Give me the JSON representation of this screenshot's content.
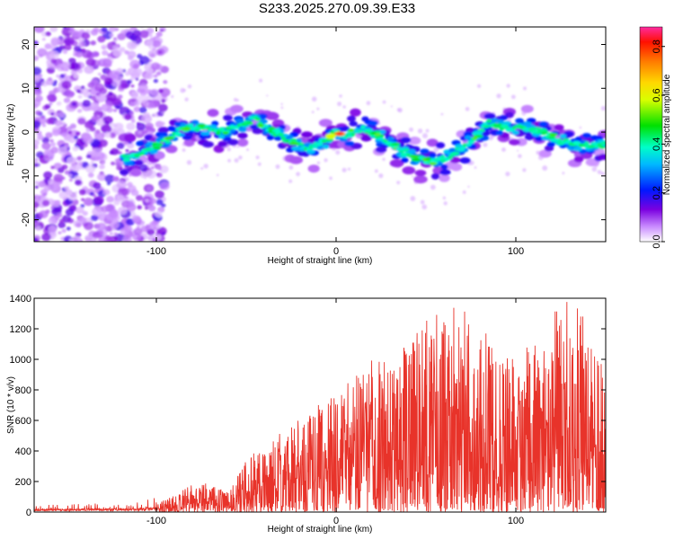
{
  "title": "S233.2025.270.09.39.E33",
  "chart_data": [
    {
      "type": "heatmap",
      "title": "S233.2025.270.09.39.E33",
      "xlabel": "Height of straight line (km)",
      "ylabel": "Frequency (Hz)",
      "xlim": [
        -168,
        150
      ],
      "ylim": [
        -25,
        24
      ],
      "x_ticks": [
        -100,
        0,
        100
      ],
      "y_ticks": [
        -20,
        -10,
        0,
        10,
        20
      ],
      "colorbar": {
        "label": "Normalized spectral amplitude",
        "range": [
          0.0,
          0.88
        ],
        "ticks": [
          "0.0",
          "0.2",
          "0.4",
          "0.6",
          "0.8"
        ]
      },
      "ridge": {
        "x": [
          -115,
          -105,
          -95,
          -85,
          -75,
          -65,
          -55,
          -45,
          -35,
          -25,
          -15,
          -5,
          0,
          5,
          15,
          25,
          35,
          45,
          55,
          65,
          75,
          85,
          95,
          105,
          115,
          125,
          135,
          145
        ],
        "y": [
          -6,
          -4,
          -2,
          1,
          1,
          0,
          1,
          3,
          0,
          -2,
          -4,
          -2,
          0,
          -1,
          1,
          -1,
          -4,
          -6,
          -7,
          -5,
          -2,
          2,
          1,
          1,
          0,
          -2,
          -3,
          -3
        ],
        "peak_amplitude": 0.88,
        "peak_x": 2
      }
    },
    {
      "type": "line",
      "xlabel": "Height of straight line (km)",
      "ylabel": "SNR (10 * v/v)",
      "xlim": [
        -168,
        150
      ],
      "ylim": [
        0,
        1400
      ],
      "x_ticks": [
        -100,
        0,
        100
      ],
      "y_ticks": [
        0,
        200,
        400,
        600,
        800,
        1000,
        1200,
        1400
      ],
      "series": [
        {
          "name": "SNR",
          "color": "#e8332a",
          "x": [
            -168,
            -150,
            -130,
            -110,
            -100,
            -90,
            -80,
            -70,
            -60,
            -50,
            -40,
            -30,
            -20,
            -10,
            0,
            10,
            20,
            30,
            40,
            50,
            60,
            70,
            80,
            90,
            100,
            110,
            120,
            130,
            140,
            150
          ],
          "envelope": [
            25,
            30,
            30,
            35,
            55,
            110,
            180,
            210,
            130,
            340,
            470,
            520,
            620,
            700,
            780,
            900,
            1000,
            1020,
            1100,
            1250,
            1400,
            1350,
            1250,
            1050,
            1000,
            1150,
            1300,
            1400,
            1250,
            900
          ]
        }
      ]
    }
  ]
}
